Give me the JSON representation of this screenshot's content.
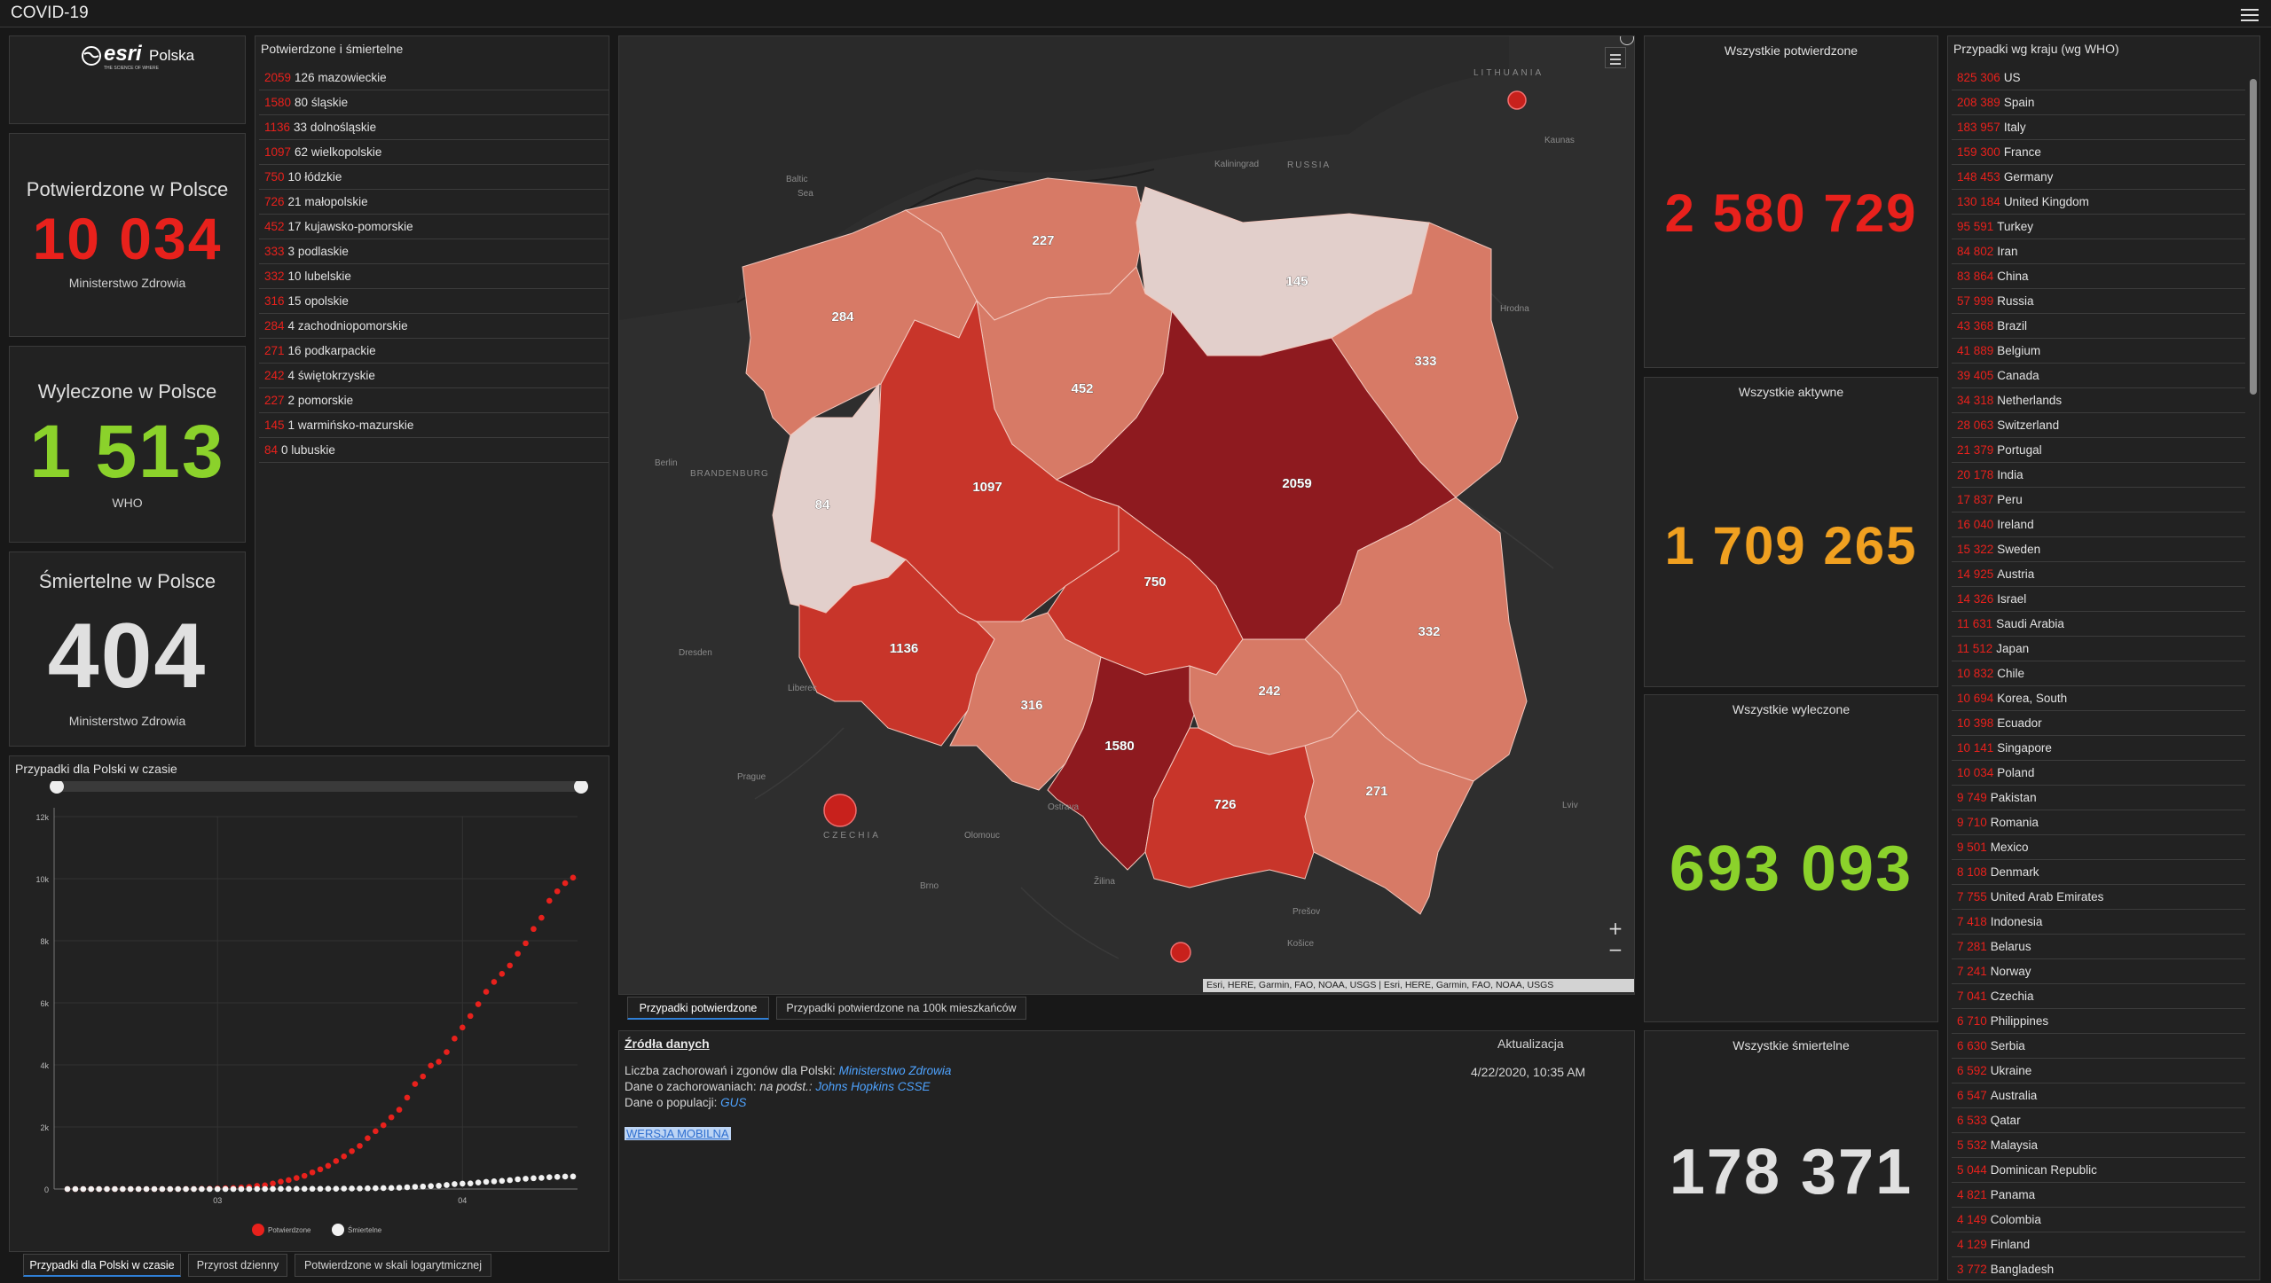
{
  "app": {
    "title": "COVID-19"
  },
  "logo": {
    "brand": "esri",
    "country": "Polska",
    "tagline": "THE SCIENCE OF WHERE"
  },
  "poland_confirmed": {
    "title": "Potwierdzone w Polsce",
    "value": "10 034",
    "source": "Ministerstwo Zdrowia",
    "color": "#e8211c"
  },
  "poland_recovered": {
    "title": "Wyleczone w Polsce",
    "value": "1 513",
    "source": "WHO",
    "color": "#8bd22b"
  },
  "poland_deaths": {
    "title": "Śmiertelne w Polsce",
    "value": "404",
    "source": "Ministerstwo Zdrowia",
    "color": "#e0e0e0"
  },
  "voivodeships": {
    "title": "Potwierdzone i śmiertelne",
    "rows": [
      {
        "confirmed": "2059",
        "deaths": "126",
        "name": "mazowieckie"
      },
      {
        "confirmed": "1580",
        "deaths": "80",
        "name": "śląskie"
      },
      {
        "confirmed": "1136",
        "deaths": "33",
        "name": "dolnośląskie"
      },
      {
        "confirmed": "1097",
        "deaths": "62",
        "name": "wielkopolskie"
      },
      {
        "confirmed": "750",
        "deaths": "10",
        "name": "łódzkie"
      },
      {
        "confirmed": "726",
        "deaths": "21",
        "name": "małopolskie"
      },
      {
        "confirmed": "452",
        "deaths": "17",
        "name": "kujawsko-pomorskie"
      },
      {
        "confirmed": "333",
        "deaths": "3",
        "name": "podlaskie"
      },
      {
        "confirmed": "332",
        "deaths": "10",
        "name": "lubelskie"
      },
      {
        "confirmed": "316",
        "deaths": "15",
        "name": "opolskie"
      },
      {
        "confirmed": "284",
        "deaths": "4",
        "name": "zachodniopomorskie"
      },
      {
        "confirmed": "271",
        "deaths": "16",
        "name": "podkarpackie"
      },
      {
        "confirmed": "242",
        "deaths": "4",
        "name": "świętokrzyskie"
      },
      {
        "confirmed": "227",
        "deaths": "2",
        "name": "pomorskie"
      },
      {
        "confirmed": "145",
        "deaths": "1",
        "name": "warmińsko-mazurskie"
      },
      {
        "confirmed": "84",
        "deaths": "0",
        "name": "lubuskie"
      }
    ]
  },
  "map": {
    "tabs": [
      "Przypadki potwierdzone",
      "Przypadki potwierdzone na 100k mieszkańców"
    ],
    "attribution": "Esri, HERE, Garmin, FAO, NOAA, USGS | Esri, HERE, Garmin, FAO, NOAA, USGS",
    "zoom_in": "+",
    "zoom_out": "−",
    "region_values": {
      "zachodniopomorskie": "284",
      "pomorskie": "227",
      "warminsko": "145",
      "podlaskie": "333",
      "kujawsko": "452",
      "lubuskie": "84",
      "wielkopolskie": "1097",
      "mazowieckie": "2059",
      "lodzkie": "750",
      "dolnoslaskie": "1136",
      "opolskie": "316",
      "slaskie": "1580",
      "swietokrzyskie": "242",
      "malopolskie": "726",
      "lubelskie": "332",
      "podkarpackie": "271"
    },
    "geo_labels": {
      "lithuania": "LITHUANIA",
      "kaliningrad": "Kaliningrad",
      "russia": "RUSSIA",
      "baltic": "Baltic",
      "sea": "Sea",
      "berlin": "Berlin",
      "brandenburg": "BRANDENBURG",
      "dresden": "Dresden",
      "prague": "Prague",
      "czechia": "CZECHIA",
      "brno": "Brno",
      "ostrava": "Ostrava",
      "kaunas": "Kaunas",
      "hrodna": "Hrodna",
      "lviv": "Lviv",
      "zilina": "Žilina",
      "presov": "Prešov",
      "kosice": "Košice",
      "liberec": "Liberec",
      "olomouc": "Olomouc"
    }
  },
  "sources": {
    "heading": "Źródła danych",
    "line1_prefix": "Liczba zachorowań i zgonów dla Polski: ",
    "line1_link": "Ministerstwo Zdrowia",
    "line2_prefix": "Dane o zachorowaniach: ",
    "line2_italic": "na podst.: ",
    "line2_link": "Johns Hopkins CSSE",
    "line3_prefix": "Dane o populacji: ",
    "line3_link": "GUS",
    "mobile": "WERSJA MOBILNA",
    "update_label": "Aktualizacja",
    "update_value": "4/22/2020, 10:35 AM"
  },
  "world": {
    "confirmed": {
      "title": "Wszystkie potwierdzone",
      "value": "2 580 729",
      "color": "#e8211c"
    },
    "active": {
      "title": "Wszystkie aktywne",
      "value": "1 709 265",
      "color": "#f0a020"
    },
    "recovered": {
      "title": "Wszystkie wyleczone",
      "value": "693 093",
      "color": "#8bd22b"
    },
    "deaths": {
      "title": "Wszystkie śmiertelne",
      "value": "178 371",
      "color": "#e0e0e0"
    }
  },
  "countries": {
    "title": "Przypadki wg kraju (wg WHO)",
    "rows": [
      {
        "value": "825 306",
        "name": "US"
      },
      {
        "value": "208 389",
        "name": "Spain"
      },
      {
        "value": "183 957",
        "name": "Italy"
      },
      {
        "value": "159 300",
        "name": "France"
      },
      {
        "value": "148 453",
        "name": "Germany"
      },
      {
        "value": "130 184",
        "name": "United Kingdom"
      },
      {
        "value": "95 591",
        "name": "Turkey"
      },
      {
        "value": "84 802",
        "name": "Iran"
      },
      {
        "value": "83 864",
        "name": "China"
      },
      {
        "value": "57 999",
        "name": "Russia"
      },
      {
        "value": "43 368",
        "name": "Brazil"
      },
      {
        "value": "41 889",
        "name": "Belgium"
      },
      {
        "value": "39 405",
        "name": "Canada"
      },
      {
        "value": "34 318",
        "name": "Netherlands"
      },
      {
        "value": "28 063",
        "name": "Switzerland"
      },
      {
        "value": "21 379",
        "name": "Portugal"
      },
      {
        "value": "20 178",
        "name": "India"
      },
      {
        "value": "17 837",
        "name": "Peru"
      },
      {
        "value": "16 040",
        "name": "Ireland"
      },
      {
        "value": "15 322",
        "name": "Sweden"
      },
      {
        "value": "14 925",
        "name": "Austria"
      },
      {
        "value": "14 326",
        "name": "Israel"
      },
      {
        "value": "11 631",
        "name": "Saudi Arabia"
      },
      {
        "value": "11 512",
        "name": "Japan"
      },
      {
        "value": "10 832",
        "name": "Chile"
      },
      {
        "value": "10 694",
        "name": "Korea, South"
      },
      {
        "value": "10 398",
        "name": "Ecuador"
      },
      {
        "value": "10 141",
        "name": "Singapore"
      },
      {
        "value": "10 034",
        "name": "Poland"
      },
      {
        "value": "9 749",
        "name": "Pakistan"
      },
      {
        "value": "9 710",
        "name": "Romania"
      },
      {
        "value": "9 501",
        "name": "Mexico"
      },
      {
        "value": "8 108",
        "name": "Denmark"
      },
      {
        "value": "7 755",
        "name": "United Arab Emirates"
      },
      {
        "value": "7 418",
        "name": "Indonesia"
      },
      {
        "value": "7 281",
        "name": "Belarus"
      },
      {
        "value": "7 241",
        "name": "Norway"
      },
      {
        "value": "7 041",
        "name": "Czechia"
      },
      {
        "value": "6 710",
        "name": "Philippines"
      },
      {
        "value": "6 630",
        "name": "Serbia"
      },
      {
        "value": "6 592",
        "name": "Ukraine"
      },
      {
        "value": "6 547",
        "name": "Australia"
      },
      {
        "value": "6 533",
        "name": "Qatar"
      },
      {
        "value": "5 532",
        "name": "Malaysia"
      },
      {
        "value": "5 044",
        "name": "Dominican Republic"
      },
      {
        "value": "4 821",
        "name": "Panama"
      },
      {
        "value": "4 149",
        "name": "Colombia"
      },
      {
        "value": "4 129",
        "name": "Finland"
      },
      {
        "value": "3 772",
        "name": "Bangladesh"
      }
    ]
  },
  "timeline": {
    "title": "Przypadki dla Polski w czasie",
    "tabs": [
      "Przypadki dla Polski w czasie",
      "Przyrost dzienny",
      "Potwierdzone w skali logarytmicznej"
    ],
    "legend": [
      "Potwierdzone",
      "Śmiertelne"
    ],
    "y_ticks": [
      "0",
      "2k",
      "4k",
      "6k",
      "8k",
      "10k",
      "12k"
    ],
    "x_ticks": [
      "03",
      "04"
    ]
  },
  "chart_data": {
    "type": "line",
    "title": "Przypadki dla Polski w czasie",
    "xlabel": "",
    "ylabel": "",
    "ylim": [
      0,
      12000
    ],
    "x_ticks": [
      "03",
      "04"
    ],
    "y_ticks": [
      "0",
      "2k",
      "4k",
      "6k",
      "8k",
      "10k",
      "12k"
    ],
    "legend_position": "bottom",
    "grid": true,
    "series": [
      {
        "name": "Potwierdzone",
        "color": "#e8211c",
        "values": [
          0,
          0,
          0,
          0,
          0,
          0,
          0,
          0,
          0,
          0,
          0,
          0,
          0,
          0,
          0,
          1,
          1,
          5,
          11,
          17,
          22,
          31,
          49,
          68,
          103,
          119,
          177,
          238,
          287,
          355,
          425,
          536,
          634,
          749,
          901,
          1051,
          1221,
          1389,
          1638,
          1862,
          2055,
          2311,
          2554,
          2946,
          3383,
          3627,
          3977,
          4102,
          4413,
          4848,
          5205,
          5575,
          5955,
          6356,
          6674,
          6934,
          7202,
          7582,
          7918,
          8379,
          8742,
          9287,
          9593,
          9856,
          10034
        ]
      },
      {
        "name": "Śmiertelne",
        "color": "#f2f2f2",
        "values": [
          0,
          0,
          0,
          0,
          0,
          0,
          0,
          0,
          0,
          0,
          0,
          0,
          0,
          0,
          0,
          0,
          0,
          0,
          0,
          0,
          0,
          0,
          0,
          1,
          2,
          3,
          3,
          5,
          5,
          5,
          5,
          7,
          7,
          8,
          10,
          14,
          16,
          18,
          22,
          26,
          31,
          33,
          43,
          57,
          71,
          79,
          94,
          107,
          129,
          159,
          174,
          181,
          208,
          232,
          247,
          263,
          286,
          314,
          332,
          347,
          360,
          380,
          392,
          401,
          404
        ]
      }
    ]
  }
}
